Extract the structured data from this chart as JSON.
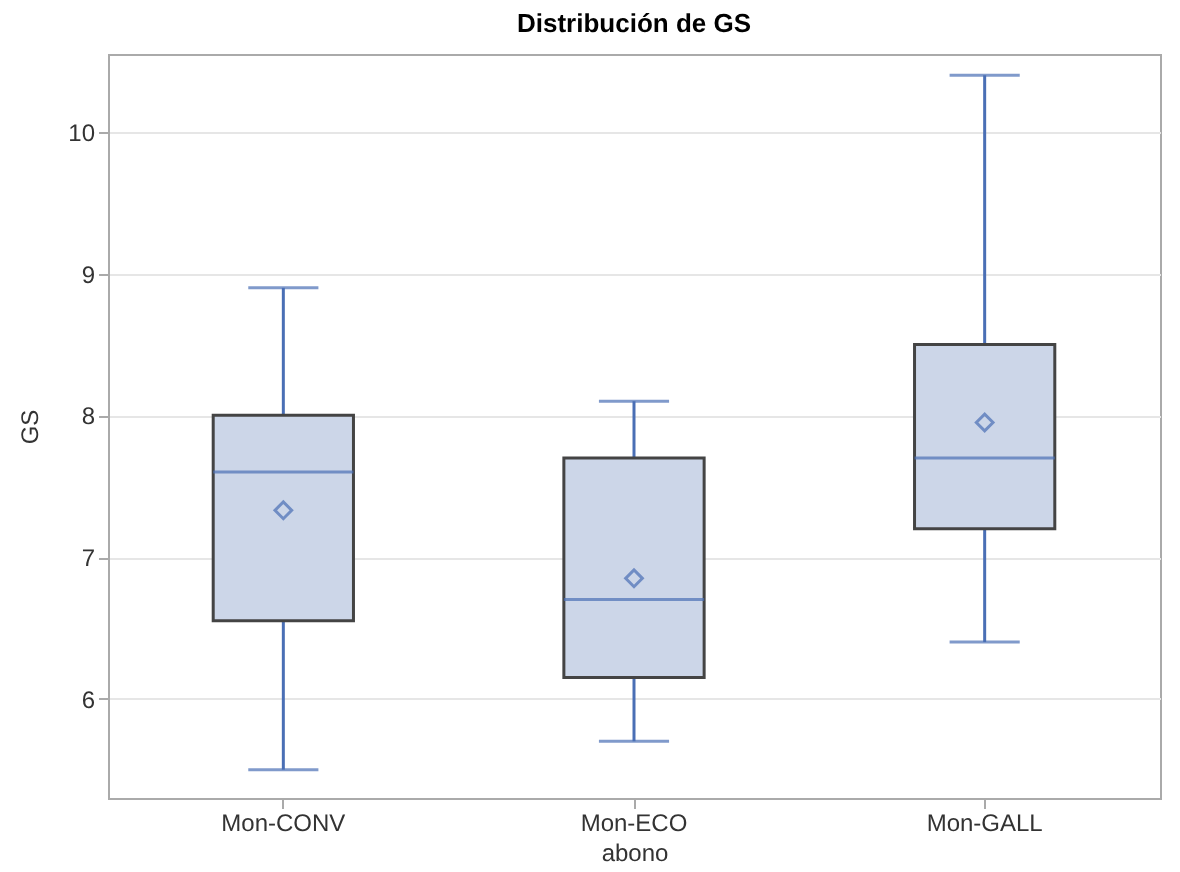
{
  "chart_data": {
    "type": "box",
    "title": "Distribución de GS",
    "xlabel": "abono",
    "ylabel": "GS",
    "categories": [
      "Mon-CONV",
      "Mon-ECO",
      "Mon-GALL"
    ],
    "boxes": [
      {
        "low": 5.5,
        "q1": 6.55,
        "median": 7.6,
        "q3": 8.0,
        "high": 8.9,
        "mean": 7.33
      },
      {
        "low": 5.7,
        "q1": 6.15,
        "median": 6.7,
        "q3": 7.7,
        "high": 8.1,
        "mean": 6.85
      },
      {
        "low": 6.4,
        "q1": 7.2,
        "median": 7.7,
        "q3": 8.5,
        "high": 10.4,
        "mean": 7.95
      }
    ],
    "color": "#ccd6e8",
    "ylim": [
      5.3,
      10.55
    ],
    "yticks": [
      6,
      7,
      8,
      9,
      10
    ],
    "grid": "y"
  }
}
